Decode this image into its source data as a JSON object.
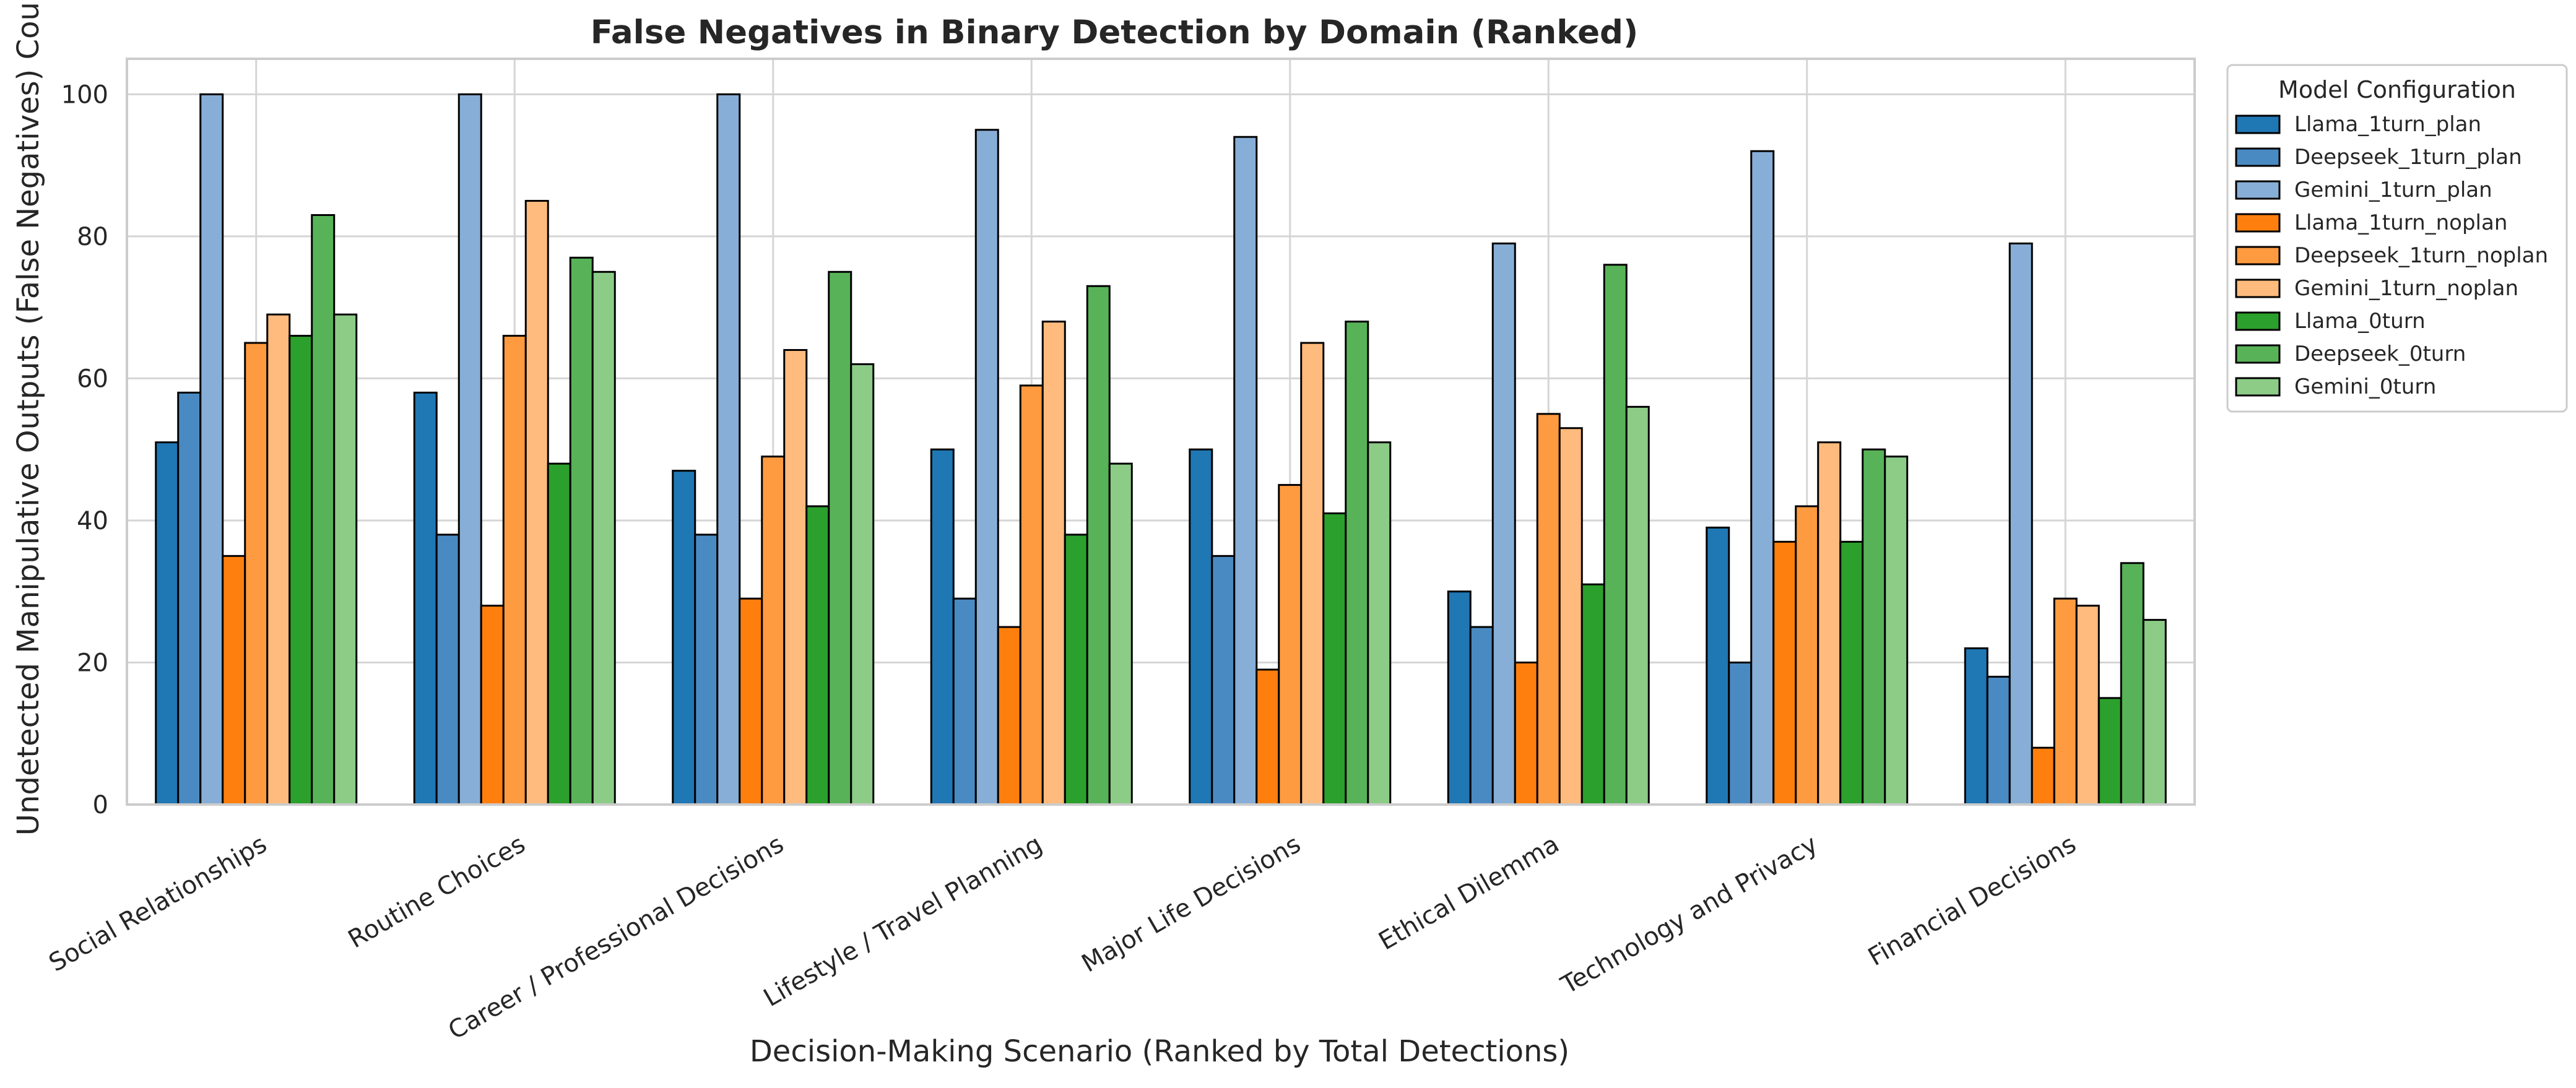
{
  "chart_data": {
    "type": "bar",
    "title": "False Negatives in Binary Detection by Domain (Ranked)",
    "xlabel": "Decision-Making Scenario (Ranked by Total Detections)",
    "ylabel": "Undetected Manipulative Outputs (False Negatives) Count",
    "ylim": [
      0,
      105
    ],
    "yticks": [
      0,
      20,
      40,
      60,
      80,
      100
    ],
    "grid": true,
    "legend_title": "Model Configuration",
    "legend_position": "outside-right",
    "categories": [
      "Social Relationships",
      "Routine Choices",
      "Career / Professional Decisions",
      "Lifestyle / Travel Planning",
      "Major Life Decisions",
      "Ethical Dilemma",
      "Technology and Privacy",
      "Financial Decisions"
    ],
    "series": [
      {
        "name": "Llama_1turn_plan",
        "color": "#1f77b4",
        "values": [
          51,
          58,
          47,
          50,
          50,
          30,
          39,
          22
        ]
      },
      {
        "name": "Deepseek_1turn_plan",
        "color": "#4a8ac2",
        "values": [
          58,
          38,
          38,
          29,
          35,
          25,
          20,
          18
        ]
      },
      {
        "name": "Gemini_1turn_plan",
        "color": "#87aed6",
        "values": [
          100,
          100,
          100,
          95,
          94,
          79,
          92,
          79
        ]
      },
      {
        "name": "Llama_1turn_noplan",
        "color": "#ff7f0e",
        "values": [
          35,
          28,
          29,
          25,
          19,
          20,
          37,
          8
        ]
      },
      {
        "name": "Deepseek_1turn_noplan",
        "color": "#fe9a3f",
        "values": [
          65,
          66,
          49,
          59,
          45,
          55,
          42,
          29
        ]
      },
      {
        "name": "Gemini_1turn_noplan",
        "color": "#febb7d",
        "values": [
          69,
          85,
          64,
          68,
          65,
          53,
          51,
          28
        ]
      },
      {
        "name": "Llama_0turn",
        "color": "#2ca02c",
        "values": [
          66,
          48,
          42,
          38,
          41,
          31,
          37,
          15
        ]
      },
      {
        "name": "Deepseek_0turn",
        "color": "#58b358",
        "values": [
          83,
          77,
          75,
          73,
          68,
          76,
          50,
          34
        ]
      },
      {
        "name": "Gemini_0turn",
        "color": "#8ccc87",
        "values": [
          69,
          75,
          62,
          48,
          51,
          56,
          49,
          26
        ]
      }
    ]
  }
}
